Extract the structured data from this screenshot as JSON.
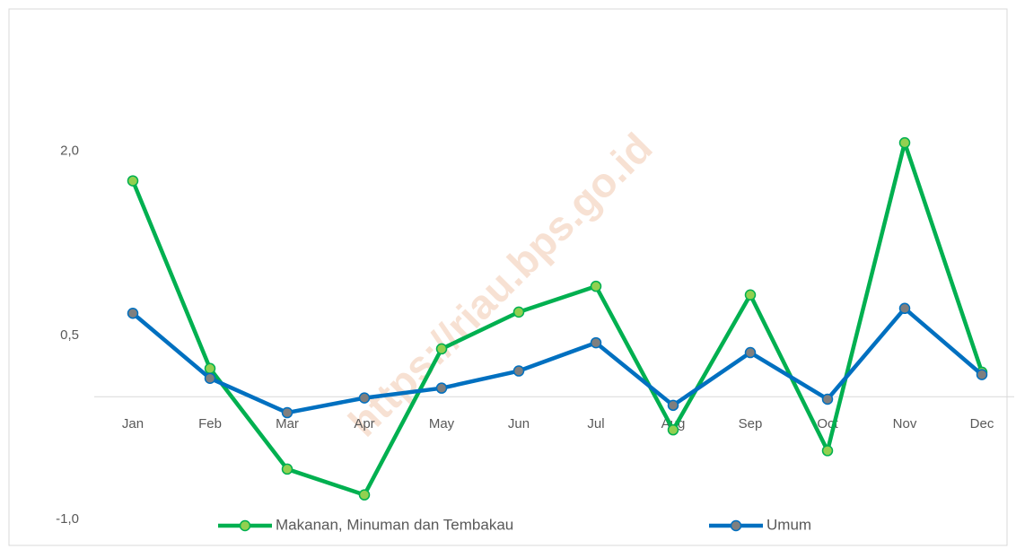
{
  "chart_data": {
    "type": "line",
    "watermark": "https://riau.bps.go.id",
    "categories": [
      "Jan",
      "Feb",
      "Mar",
      "Apr",
      "May",
      "Jun",
      "Jul",
      "Aug",
      "Sep",
      "Oct",
      "Nov",
      "Dec"
    ],
    "series": [
      {
        "name": "Makanan, Minuman dan Tembakau",
        "color": "#00b050",
        "marker_color": "#92d050",
        "values": [
          1.76,
          0.23,
          -0.59,
          -0.8,
          0.39,
          0.69,
          0.9,
          -0.27,
          0.83,
          -0.44,
          2.07,
          0.2
        ]
      },
      {
        "name": "Umum",
        "color": "#0070c0",
        "marker_color": "#7f7f7f",
        "values": [
          0.68,
          0.15,
          -0.13,
          -0.01,
          0.07,
          0.21,
          0.44,
          -0.07,
          0.36,
          -0.02,
          0.72,
          0.18
        ]
      }
    ],
    "ylim": [
      -1.0,
      3.0
    ],
    "yticks": [
      {
        "value": -1.0,
        "label": "-1,0"
      },
      {
        "value": 0.5,
        "label": "0,5"
      },
      {
        "value": 2.0,
        "label": "2,0"
      }
    ],
    "grid": false,
    "legend": "bottom"
  }
}
